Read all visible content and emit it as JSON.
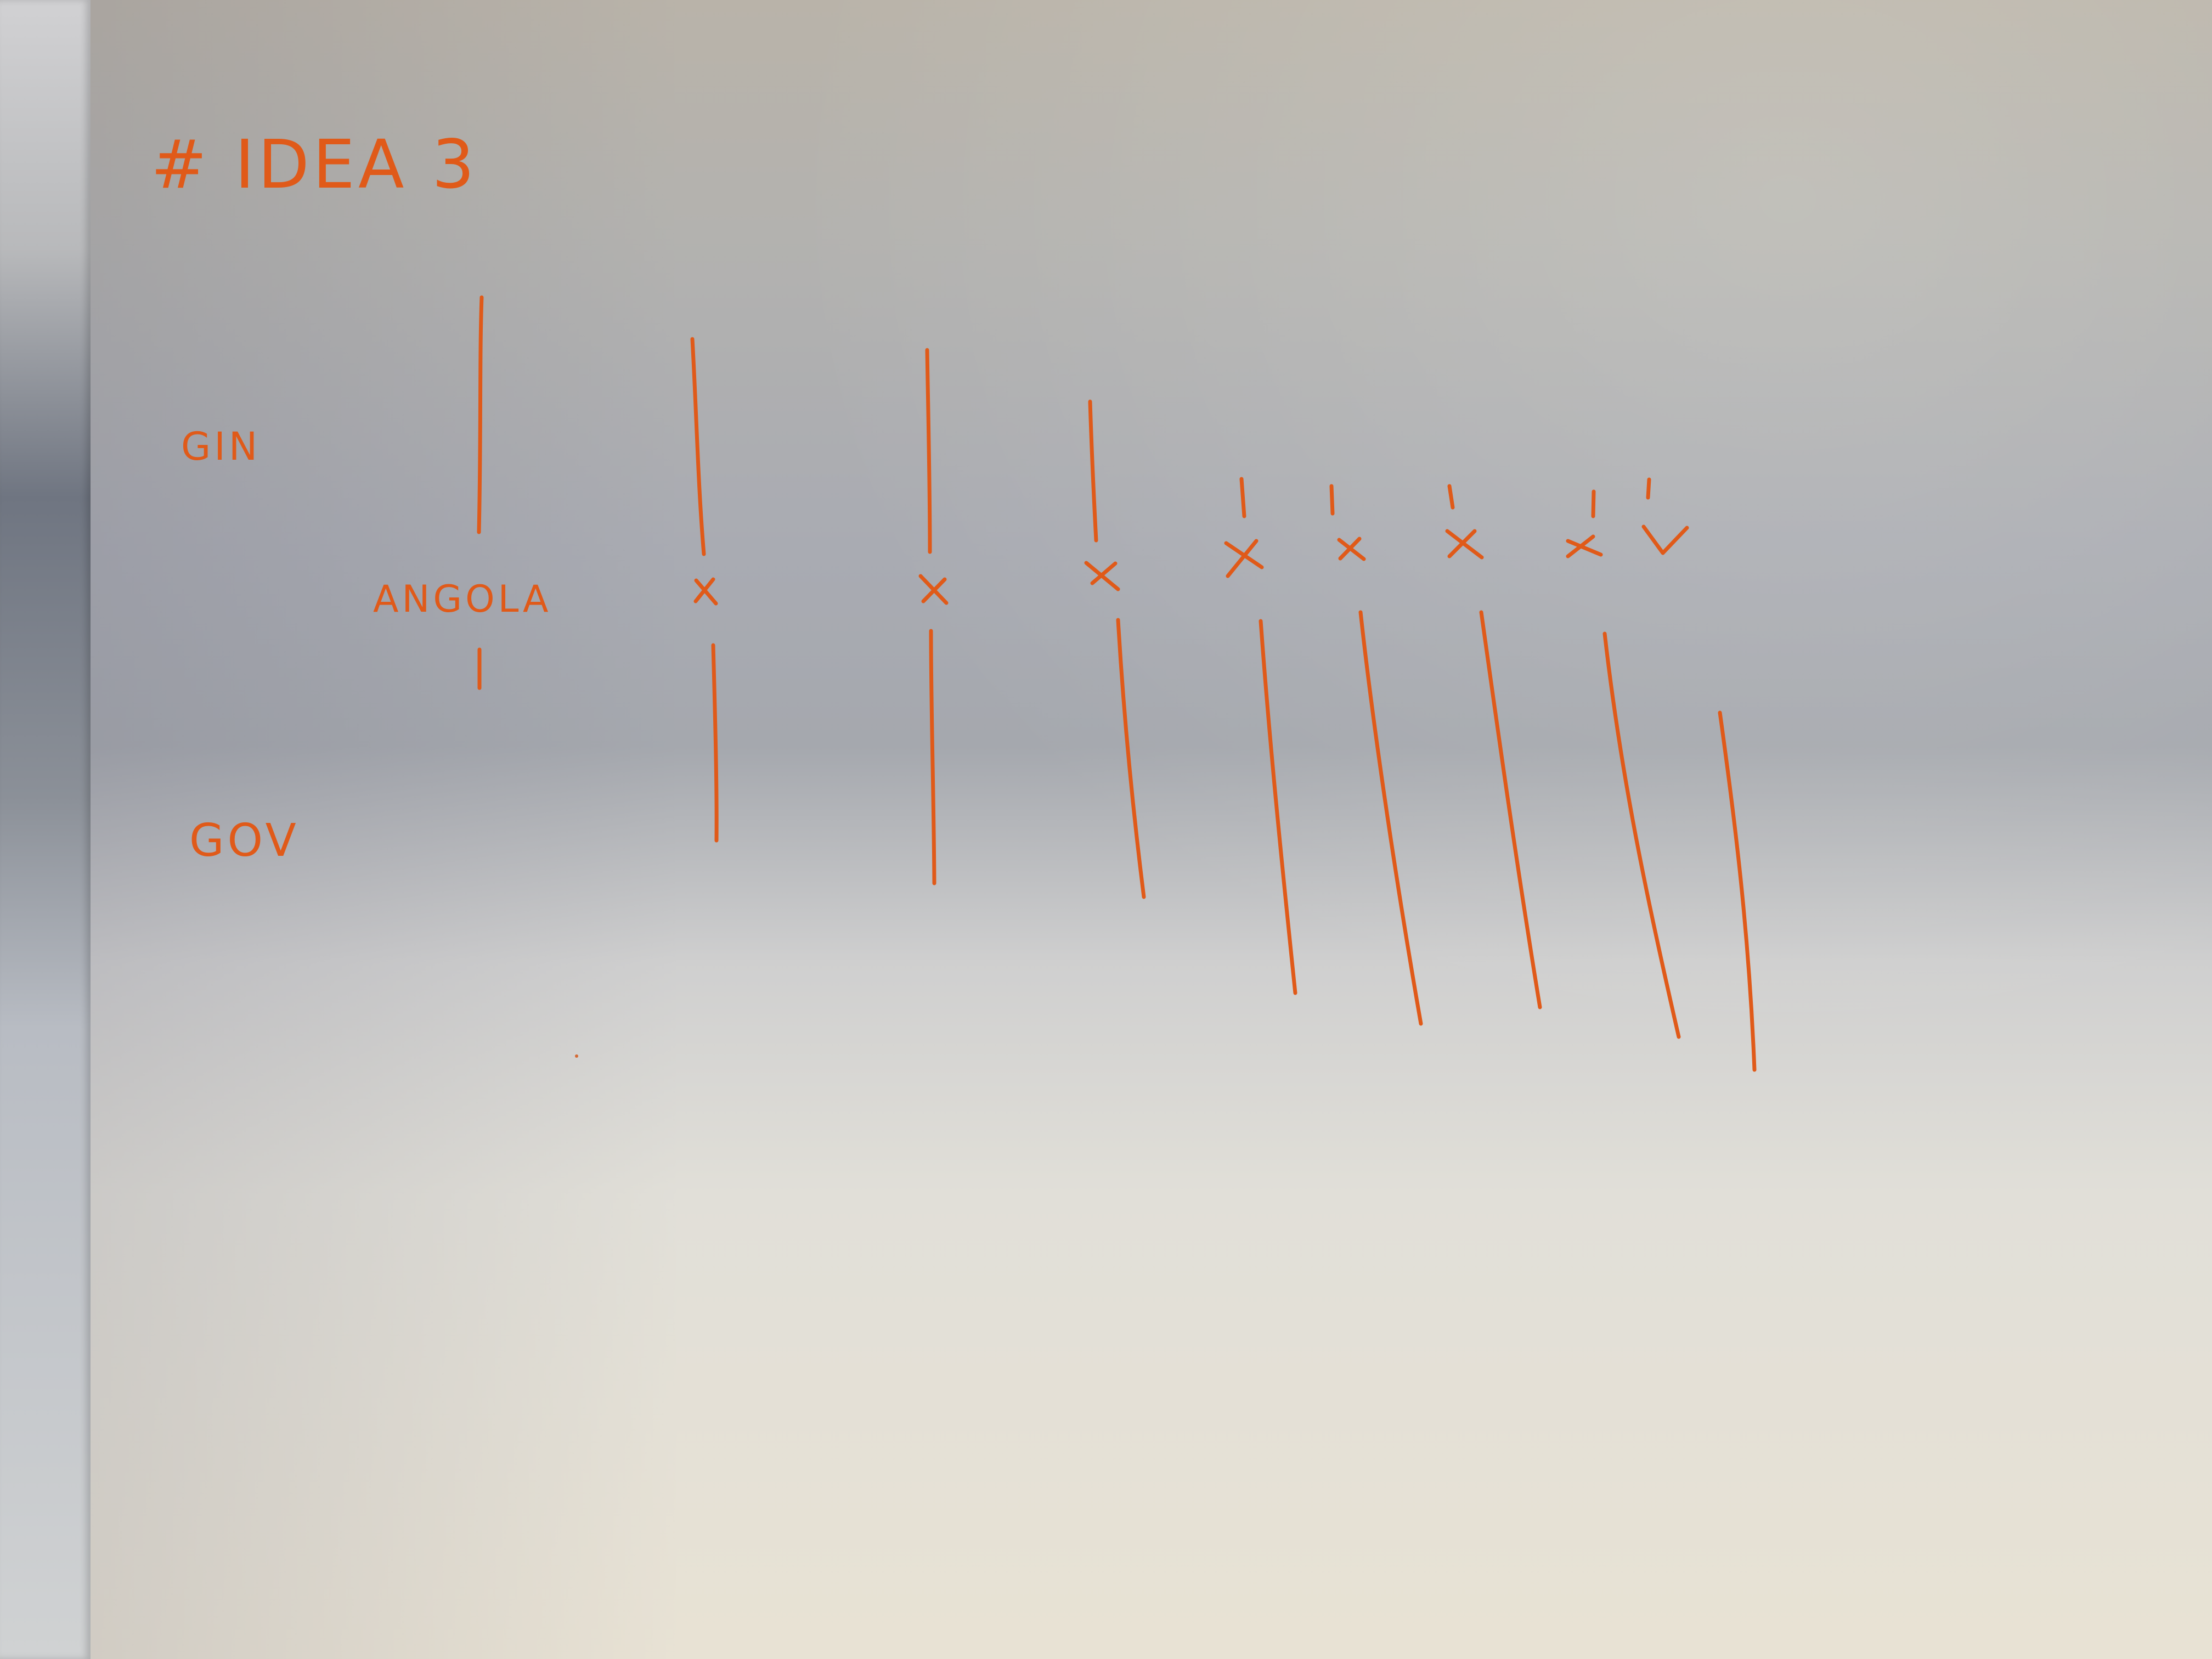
{
  "photo": {
    "subject": "handwritten diagram on paper",
    "ink_color": "#e05a19",
    "paper_color": "#e7e2d8"
  },
  "sketch": {
    "title": "# IDEA 3",
    "label_top": "GIN",
    "label_bottom": "GOV",
    "center_label": "ANGOLA",
    "cross_mark": "x"
  }
}
